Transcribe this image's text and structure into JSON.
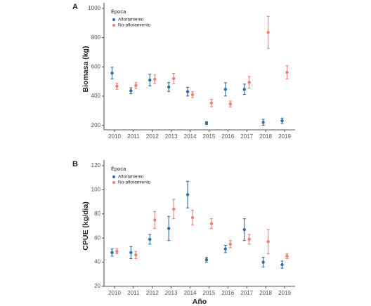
{
  "chart_data": [
    {
      "type": "errorbar",
      "panel": "A",
      "y_label": "Biomasa (kg)",
      "legend_title": "Época",
      "categories": [
        "2010",
        "2011",
        "2012",
        "2013",
        "2014",
        "2015",
        "2016",
        "2017",
        "2018",
        "2019"
      ],
      "ylim": [
        170,
        1000
      ],
      "yticks": [
        200,
        400,
        600,
        800,
        1000
      ],
      "series": [
        {
          "name": "Afloramiento",
          "color": "#2f6fa8",
          "values": [
            558,
            437,
            510,
            463,
            431,
            216,
            447,
            447,
            221,
            232
          ],
          "errors": [
            40,
            20,
            40,
            30,
            30,
            10,
            45,
            35,
            20,
            18
          ]
        },
        {
          "name": "No-afloramiento",
          "color": "#ec8077",
          "values": [
            468,
            473,
            516,
            521,
            410,
            353,
            347,
            495,
            836,
            563
          ],
          "errors": [
            20,
            20,
            30,
            35,
            20,
            25,
            20,
            40,
            110,
            45
          ]
        }
      ]
    },
    {
      "type": "errorbar",
      "panel": "B",
      "y_label": "CPUE (kg/dia)",
      "x_label": "Año",
      "legend_title": "Época",
      "categories": [
        "2010",
        "2011",
        "2012",
        "2013",
        "2014",
        "2015",
        "2016",
        "2017",
        "2018",
        "2019"
      ],
      "ylim": [
        20,
        120
      ],
      "yticks": [
        20,
        40,
        60,
        80,
        100,
        120
      ],
      "series": [
        {
          "name": "Afloramiento",
          "color": "#2f6fa8",
          "values": [
            48,
            48,
            59,
            68,
            96,
            42,
            51,
            67,
            40,
            38
          ],
          "errors": [
            3,
            5,
            4,
            10,
            11,
            2,
            3,
            9,
            4,
            3
          ]
        },
        {
          "name": "No-afloramiento",
          "color": "#ec8077",
          "values": [
            49,
            46,
            75,
            84,
            77,
            72,
            55,
            59,
            57,
            45
          ],
          "errors": [
            2,
            3,
            7,
            8,
            6,
            4,
            3,
            4,
            10,
            2
          ]
        }
      ]
    }
  ]
}
